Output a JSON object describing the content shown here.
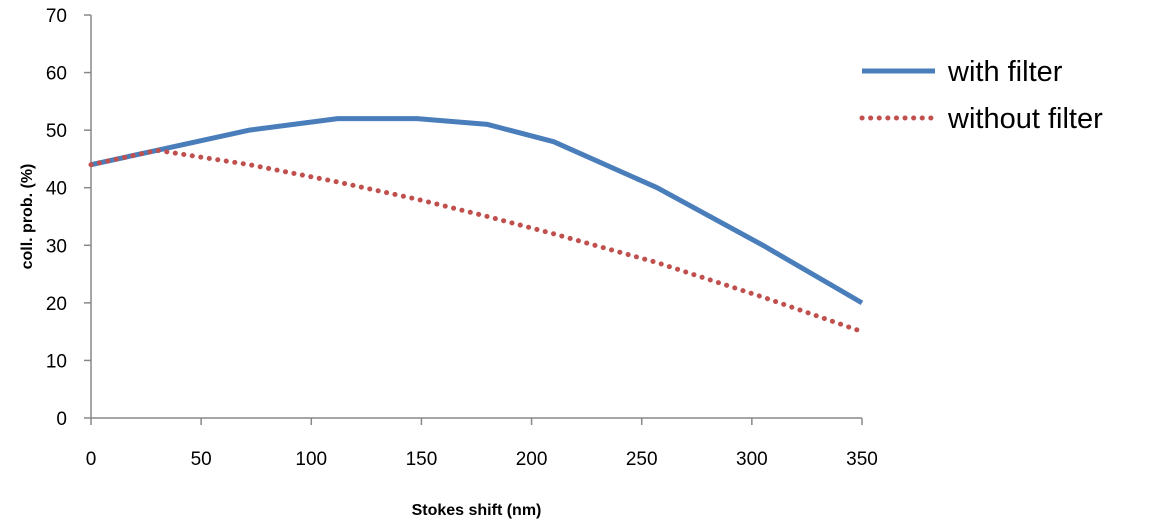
{
  "chart_data": {
    "type": "line",
    "xlabel": "Stokes shift (nm)",
    "ylabel": "coll. prob. (%)",
    "xlim": [
      0,
      350
    ],
    "ylim": [
      0,
      70
    ],
    "xticks": [
      "0",
      "50",
      "100",
      "150",
      "200",
      "250",
      "300",
      "350"
    ],
    "yticks": [
      "0",
      "10",
      "20",
      "30",
      "40",
      "50",
      "60",
      "70"
    ],
    "grid": false,
    "legend_position": "top-right",
    "series": [
      {
        "name": "with filter",
        "color": "#4a7ebb",
        "style": "solid",
        "x": [
          0,
          30,
          72,
          112,
          148,
          180,
          210,
          257,
          305,
          350
        ],
        "y": [
          44,
          46.5,
          50,
          52,
          52,
          51,
          48,
          40,
          30,
          20
        ]
      },
      {
        "name": "without filter",
        "color": "#c0504d",
        "style": "dotted",
        "x": [
          0,
          30,
          72,
          112,
          148,
          180,
          210,
          257,
          305,
          350
        ],
        "y": [
          44,
          46.5,
          44,
          41,
          38,
          35,
          32,
          27,
          21,
          15
        ]
      }
    ]
  }
}
